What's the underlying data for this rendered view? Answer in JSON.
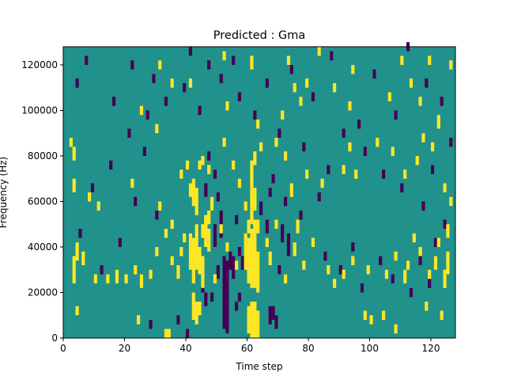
{
  "chart_data": {
    "type": "heatmap",
    "title": "Predicted : Gma",
    "xlabel": "Time step",
    "ylabel": "Frequency (Hz)",
    "xlim": [
      0,
      128
    ],
    "ylim": [
      0,
      128000
    ],
    "x_ticks": [
      0,
      20,
      40,
      60,
      80,
      100,
      120
    ],
    "y_ticks": [
      0,
      20000,
      40000,
      60000,
      80000,
      100000,
      120000
    ],
    "x_tick_labels": [
      "0",
      "20",
      "40",
      "60",
      "80",
      "100",
      "120"
    ],
    "y_tick_labels": [
      "0",
      "20000",
      "40000",
      "60000",
      "80000",
      "100000",
      "120000"
    ],
    "grid": false,
    "colormap": "viridis",
    "colors": {
      "background_value": "#21918c",
      "high_value": "#fde725",
      "low_value": "#440154"
    },
    "time_bins": 128,
    "frequency_bins": 128,
    "frequency_bin_hz": 1000,
    "background_level": 0,
    "high_level": 1,
    "low_level": -1,
    "high_cells": [
      [
        33,
        0,
        4
      ],
      [
        34,
        0,
        4
      ],
      [
        61,
        0,
        16
      ],
      [
        62,
        0,
        16
      ],
      [
        63,
        0,
        12
      ],
      [
        60,
        2,
        12
      ],
      [
        42,
        8,
        12
      ],
      [
        43,
        6,
        10
      ],
      [
        44,
        10,
        6
      ],
      [
        24,
        6,
        4
      ],
      [
        98,
        8,
        4
      ],
      [
        100,
        6,
        4
      ],
      [
        104,
        8,
        4
      ],
      [
        108,
        2,
        4
      ],
      [
        118,
        12,
        4
      ],
      [
        123,
        8,
        4
      ],
      [
        4,
        10,
        4
      ],
      [
        45,
        22,
        14
      ],
      [
        44,
        28,
        12
      ],
      [
        41,
        30,
        16
      ],
      [
        42,
        24,
        20
      ],
      [
        43,
        30,
        20
      ],
      [
        46,
        40,
        14
      ],
      [
        45,
        44,
        6
      ],
      [
        47,
        38,
        10
      ],
      [
        42,
        58,
        10
      ],
      [
        41,
        62,
        6
      ],
      [
        43,
        54,
        12
      ],
      [
        46,
        46,
        8
      ],
      [
        47,
        50,
        6
      ],
      [
        42,
        66,
        4
      ],
      [
        60,
        24,
        20
      ],
      [
        61,
        22,
        26
      ],
      [
        62,
        22,
        30
      ],
      [
        63,
        20,
        18
      ],
      [
        59,
        30,
        16
      ],
      [
        60,
        46,
        6
      ],
      [
        61,
        50,
        16
      ],
      [
        62,
        56,
        6
      ],
      [
        63,
        46,
        6
      ],
      [
        61,
        66,
        12
      ],
      [
        62,
        60,
        6
      ],
      [
        59,
        56,
        4
      ],
      [
        3,
        24,
        6
      ],
      [
        3,
        30,
        6
      ],
      [
        4,
        34,
        8
      ],
      [
        6,
        32,
        6
      ],
      [
        10,
        24,
        4
      ],
      [
        14,
        24,
        4
      ],
      [
        17,
        24,
        6
      ],
      [
        20,
        24,
        4
      ],
      [
        23,
        28,
        4
      ],
      [
        25,
        22,
        6
      ],
      [
        28,
        26,
        4
      ],
      [
        30,
        36,
        4
      ],
      [
        33,
        44,
        4
      ],
      [
        35,
        32,
        4
      ],
      [
        37,
        26,
        6
      ],
      [
        38,
        36,
        4
      ],
      [
        39,
        42,
        4
      ],
      [
        48,
        56,
        6
      ],
      [
        49,
        24,
        4
      ],
      [
        51,
        46,
        4
      ],
      [
        53,
        38,
        4
      ],
      [
        56,
        30,
        4
      ],
      [
        66,
        40,
        4
      ],
      [
        67,
        32,
        6
      ],
      [
        69,
        48,
        4
      ],
      [
        72,
        24,
        4
      ],
      [
        75,
        36,
        6
      ],
      [
        76,
        46,
        6
      ],
      [
        78,
        30,
        4
      ],
      [
        81,
        40,
        4
      ],
      [
        86,
        28,
        4
      ],
      [
        88,
        22,
        4
      ],
      [
        91,
        26,
        4
      ],
      [
        94,
        32,
        4
      ],
      [
        99,
        28,
        4
      ],
      [
        105,
        26,
        4
      ],
      [
        108,
        34,
        4
      ],
      [
        112,
        30,
        4
      ],
      [
        116,
        36,
        4
      ],
      [
        119,
        26,
        4
      ],
      [
        121,
        30,
        6
      ],
      [
        124,
        22,
        8
      ],
      [
        125,
        28,
        10
      ],
      [
        111,
        24,
        6
      ],
      [
        114,
        42,
        4
      ],
      [
        122,
        40,
        4
      ],
      [
        125,
        44,
        6
      ],
      [
        3,
        64,
        6
      ],
      [
        3,
        78,
        6
      ],
      [
        2,
        84,
        4
      ],
      [
        8,
        60,
        4
      ],
      [
        11,
        56,
        4
      ],
      [
        22,
        66,
        4
      ],
      [
        31,
        56,
        4
      ],
      [
        35,
        48,
        4
      ],
      [
        38,
        70,
        4
      ],
      [
        40,
        74,
        4
      ],
      [
        44,
        74,
        4
      ],
      [
        45,
        76,
        4
      ],
      [
        47,
        72,
        4
      ],
      [
        52,
        84,
        4
      ],
      [
        55,
        74,
        4
      ],
      [
        57,
        66,
        4
      ],
      [
        62,
        76,
        6
      ],
      [
        64,
        82,
        4
      ],
      [
        69,
        84,
        4
      ],
      [
        72,
        78,
        4
      ],
      [
        74,
        62,
        6
      ],
      [
        79,
        70,
        4
      ],
      [
        84,
        66,
        4
      ],
      [
        91,
        72,
        4
      ],
      [
        93,
        82,
        4
      ],
      [
        95,
        70,
        4
      ],
      [
        102,
        84,
        4
      ],
      [
        107,
        80,
        4
      ],
      [
        111,
        70,
        4
      ],
      [
        115,
        76,
        4
      ],
      [
        117,
        86,
        4
      ],
      [
        120,
        82,
        4
      ],
      [
        122,
        92,
        4
      ],
      [
        124,
        64,
        4
      ],
      [
        126,
        58,
        4
      ],
      [
        25,
        98,
        4
      ],
      [
        30,
        90,
        4
      ],
      [
        31,
        118,
        4
      ],
      [
        35,
        110,
        4
      ],
      [
        41,
        110,
        4
      ],
      [
        52,
        122,
        4
      ],
      [
        53,
        100,
        4
      ],
      [
        61,
        118,
        6
      ],
      [
        63,
        92,
        4
      ],
      [
        71,
        96,
        4
      ],
      [
        73,
        120,
        4
      ],
      [
        75,
        108,
        4
      ],
      [
        77,
        102,
        4
      ],
      [
        79,
        110,
        4
      ],
      [
        83,
        124,
        4
      ],
      [
        88,
        108,
        4
      ],
      [
        93,
        100,
        4
      ],
      [
        94,
        116,
        4
      ],
      [
        106,
        104,
        4
      ],
      [
        110,
        120,
        4
      ],
      [
        113,
        110,
        4
      ],
      [
        116,
        102,
        4
      ],
      [
        119,
        120,
        4
      ],
      [
        122,
        94,
        4
      ],
      [
        126,
        118,
        4
      ]
    ],
    "low_cells": [
      [
        52,
        4,
        32
      ],
      [
        53,
        2,
        32
      ],
      [
        54,
        30,
        8
      ],
      [
        51,
        44,
        12
      ],
      [
        55,
        26,
        10
      ],
      [
        49,
        40,
        10
      ],
      [
        50,
        26,
        6
      ],
      [
        56,
        50,
        4
      ],
      [
        57,
        36,
        4
      ],
      [
        58,
        30,
        6
      ],
      [
        67,
        6,
        8
      ],
      [
        68,
        8,
        6
      ],
      [
        69,
        4,
        6
      ],
      [
        70,
        28,
        4
      ],
      [
        66,
        46,
        6
      ],
      [
        71,
        42,
        8
      ],
      [
        73,
        36,
        10
      ],
      [
        64,
        54,
        6
      ],
      [
        56,
        12,
        4
      ],
      [
        57,
        16,
        4
      ],
      [
        46,
        14,
        6
      ],
      [
        45,
        20,
        6
      ],
      [
        48,
        16,
        4
      ],
      [
        28,
        4,
        4
      ],
      [
        37,
        6,
        4
      ],
      [
        40,
        0,
        4
      ],
      [
        50,
        60,
        4
      ],
      [
        49,
        70,
        4
      ],
      [
        47,
        78,
        4
      ],
      [
        46,
        62,
        6
      ],
      [
        67,
        62,
        4
      ],
      [
        68,
        68,
        4
      ],
      [
        72,
        58,
        4
      ],
      [
        77,
        52,
        4
      ],
      [
        85,
        34,
        4
      ],
      [
        90,
        28,
        4
      ],
      [
        94,
        38,
        4
      ],
      [
        97,
        20,
        4
      ],
      [
        103,
        32,
        4
      ],
      [
        107,
        24,
        4
      ],
      [
        113,
        18,
        4
      ],
      [
        116,
        32,
        4
      ],
      [
        119,
        22,
        4
      ],
      [
        121,
        40,
        4
      ],
      [
        124,
        48,
        4
      ],
      [
        117,
        56,
        4
      ],
      [
        110,
        64,
        4
      ],
      [
        104,
        70,
        4
      ],
      [
        98,
        80,
        4
      ],
      [
        91,
        88,
        4
      ],
      [
        86,
        72,
        4
      ],
      [
        83,
        60,
        4
      ],
      [
        78,
        82,
        4
      ],
      [
        70,
        88,
        4
      ],
      [
        62,
        96,
        4
      ],
      [
        57,
        104,
        4
      ],
      [
        51,
        112,
        4
      ],
      [
        47,
        118,
        4
      ],
      [
        39,
        108,
        4
      ],
      [
        33,
        102,
        4
      ],
      [
        27,
        96,
        4
      ],
      [
        21,
        88,
        4
      ],
      [
        15,
        74,
        4
      ],
      [
        9,
        64,
        4
      ],
      [
        5,
        44,
        4
      ],
      [
        12,
        28,
        4
      ],
      [
        18,
        40,
        4
      ],
      [
        23,
        58,
        4
      ],
      [
        26,
        80,
        4
      ],
      [
        30,
        52,
        4
      ],
      [
        4,
        110,
        4
      ],
      [
        7,
        120,
        4
      ],
      [
        16,
        102,
        4
      ],
      [
        22,
        118,
        4
      ],
      [
        29,
        112,
        4
      ],
      [
        41,
        124,
        4
      ],
      [
        44,
        98,
        4
      ],
      [
        55,
        120,
        4
      ],
      [
        66,
        110,
        4
      ],
      [
        74,
        116,
        4
      ],
      [
        81,
        104,
        4
      ],
      [
        87,
        122,
        4
      ],
      [
        96,
        92,
        4
      ],
      [
        101,
        114,
        4
      ],
      [
        108,
        96,
        4
      ],
      [
        112,
        126,
        4
      ],
      [
        118,
        110,
        4
      ],
      [
        123,
        102,
        4
      ],
      [
        126,
        84,
        4
      ],
      [
        120,
        72,
        4
      ]
    ]
  }
}
